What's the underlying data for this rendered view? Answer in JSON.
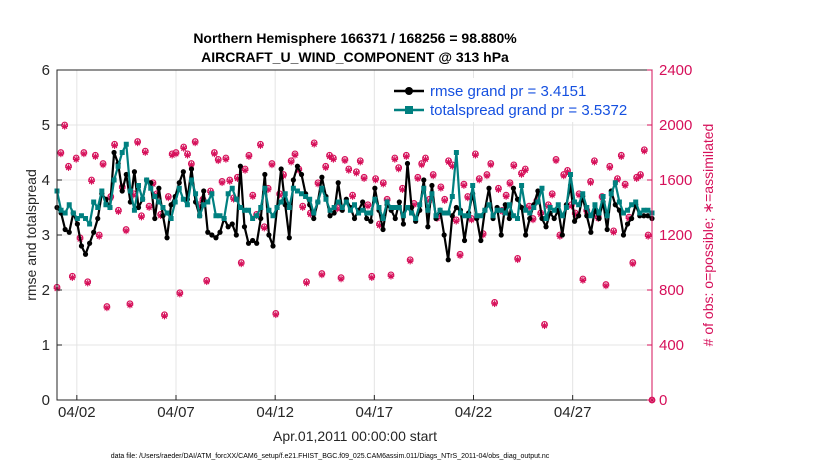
{
  "chart_data": {
    "type": "line",
    "title": "Northern Hemisphere 166371 / 168256 = 98.880%",
    "subtitle": "AIRCRAFT_U_WIND_COMPONENT @ 313 hPa",
    "xlabel": "Apr.01,2011 00:00:00 start",
    "ylabel_left": "rmse and totalspread",
    "ylabel_right": "# of obs: o=possible; ∗=assimilated",
    "footnote": "data file: /Users/raeder/DAI/ATM_forcXX/CAM6_setup/f.e21.FHIST_BGC.f09_025.CAM6assim.011/Diags_NTrS_2011-04/obs_diag_output.nc",
    "x_tick_labels": [
      "04/02",
      "04/07",
      "04/12",
      "04/17",
      "04/22",
      "04/27"
    ],
    "x_tick_days": [
      2,
      7,
      12,
      17,
      22,
      27
    ],
    "xlim_days": [
      1.0,
      31.0
    ],
    "y_left_ticks": [
      "0",
      "1",
      "2",
      "3",
      "4",
      "5",
      "6"
    ],
    "ylim_left": [
      0,
      6
    ],
    "y_right_ticks": [
      "0",
      "400",
      "800",
      "1200",
      "1600",
      "2000",
      "2400"
    ],
    "ylim_right": [
      0,
      2400
    ],
    "series": [
      {
        "name": "rmse grand pr = 3.4151",
        "color": "#000000",
        "marker": "circle",
        "axis": "left",
        "values": [
          3.5,
          3.4,
          3.1,
          3.05,
          3.4,
          3.2,
          2.8,
          2.65,
          2.85,
          3.05,
          3.3,
          3.75,
          3.65,
          3.5,
          4.5,
          4.3,
          3.8,
          4.1,
          3.6,
          4.15,
          3.5,
          3.65,
          4.0,
          3.95,
          3.3,
          3.85,
          3.35,
          2.95,
          3.55,
          3.7,
          3.95,
          4.15,
          3.65,
          4.2,
          3.6,
          3.35,
          3.8,
          3.05,
          3.0,
          2.95,
          3.05,
          3.3,
          3.15,
          3.2,
          3.0,
          4.25,
          3.15,
          2.85,
          2.9,
          2.85,
          3.3,
          4.1,
          3.0,
          2.8,
          3.5,
          4.2,
          3.55,
          2.95,
          4.0,
          4.25,
          4.1,
          3.75,
          3.55,
          3.3,
          3.6,
          4.05,
          3.7,
          3.35,
          3.4,
          3.95,
          3.45,
          3.65,
          3.5,
          3.3,
          3.45,
          3.6,
          3.3,
          3.25,
          3.85,
          3.45,
          3.1,
          3.55,
          3.45,
          3.3,
          3.6,
          3.2,
          4.3,
          3.5,
          3.25,
          3.45,
          4.0,
          3.15,
          3.9,
          3.3,
          3.45,
          3.0,
          2.55,
          3.35,
          3.5,
          3.45,
          2.9,
          3.4,
          3.75,
          3.3,
          2.9,
          3.45,
          3.85,
          3.3,
          3.5,
          3.0,
          3.55,
          3.3,
          3.85,
          3.65,
          3.5,
          3.0,
          3.3,
          3.55,
          3.8,
          3.3,
          3.15,
          3.4,
          3.3,
          3.45,
          3.0,
          3.55,
          3.9,
          3.25,
          3.35,
          3.7,
          3.35,
          3.05,
          3.45,
          3.3,
          3.6,
          3.1,
          3.8,
          3.55,
          3.45,
          3.0,
          3.2,
          3.3,
          3.55,
          3.35,
          3.35,
          3.35,
          3.3
        ]
      },
      {
        "name": "totalspread grand pr = 3.5372",
        "color": "#008080",
        "marker": "square",
        "axis": "left",
        "values": [
          3.8,
          3.45,
          3.4,
          3.55,
          3.4,
          3.3,
          3.35,
          3.3,
          3.2,
          3.6,
          3.5,
          3.8,
          3.55,
          3.5,
          4.0,
          4.25,
          4.5,
          4.65,
          3.8,
          3.45,
          3.9,
          3.65,
          4.0,
          3.85,
          3.7,
          3.6,
          3.5,
          3.4,
          3.3,
          3.6,
          3.85,
          3.65,
          3.55,
          4.0,
          3.75,
          3.35,
          3.55,
          3.6,
          3.75,
          3.35,
          3.35,
          3.3,
          3.75,
          3.85,
          3.65,
          3.5,
          3.45,
          3.45,
          3.3,
          3.35,
          3.5,
          3.85,
          3.45,
          3.35,
          3.5,
          3.6,
          3.75,
          3.5,
          3.85,
          3.8,
          3.75,
          3.7,
          3.65,
          3.4,
          3.6,
          3.85,
          3.65,
          3.45,
          3.5,
          3.6,
          3.5,
          3.6,
          3.45,
          3.55,
          3.4,
          3.45,
          3.4,
          3.4,
          3.65,
          3.5,
          3.3,
          3.6,
          3.5,
          3.5,
          3.5,
          3.35,
          3.5,
          3.4,
          3.3,
          3.55,
          3.85,
          3.45,
          3.75,
          3.35,
          3.45,
          3.4,
          3.4,
          3.7,
          4.5,
          3.4,
          3.35,
          3.35,
          3.9,
          3.35,
          3.35,
          3.45,
          3.55,
          3.35,
          3.45,
          3.45,
          3.4,
          3.55,
          3.35,
          3.3,
          3.9,
          3.45,
          3.4,
          3.5,
          3.6,
          3.85,
          3.3,
          3.5,
          3.45,
          3.55,
          3.35,
          3.5,
          4.1,
          3.6,
          3.55,
          3.75,
          3.5,
          3.35,
          3.55,
          3.4,
          3.7,
          3.35,
          3.75,
          3.95,
          3.6,
          3.4,
          3.45,
          3.55,
          3.6,
          3.4,
          3.45,
          3.45,
          3.4
        ]
      },
      {
        "name": "# of obs possible",
        "color": "#d6105a",
        "marker": "open-circle",
        "axis": "right",
        "values": [
          820,
          1800,
          2000,
          1700,
          900,
          1760,
          1180,
          1800,
          860,
          1600,
          1780,
          1200,
          1720,
          680,
          1480,
          1860,
          1380,
          1550,
          1240,
          700,
          1500,
          1880,
          1340,
          1810,
          1410,
          1580,
          1500,
          1350,
          620,
          1480,
          1790,
          1800,
          780,
          1840,
          1790,
          1720,
          1880,
          1420,
          1460,
          870,
          1520,
          1800,
          1750,
          1590,
          1760,
          1600,
          1470,
          1620,
          1000,
          1680,
          1780,
          1490,
          1350,
          1860,
          1260,
          1540,
          1720,
          630,
          1500,
          1640,
          1420,
          1740,
          1790,
          1680,
          1410,
          860,
          1360,
          1870,
          1580,
          920,
          1700,
          1780,
          1760,
          1400,
          890,
          1750,
          1680,
          1490,
          1660,
          1740,
          1620,
          1420,
          900,
          1610,
          1280,
          1580,
          1460,
          910,
          1760,
          1690,
          1540,
          1780,
          1020,
          1430,
          1620,
          1720,
          1760,
          1460,
          1640,
          1330,
          1550,
          1460,
          1740,
          1710,
          1310,
          1060,
          1570,
          1480,
          1320,
          1790,
          1610,
          1210,
          1640,
          1720,
          710,
          1540,
          1380,
          1490,
          1580,
          1710,
          1030,
          1650,
          1680,
          1410,
          1320,
          1450,
          1360,
          550,
          1420,
          1500,
          1750,
          1200,
          1640,
          1670,
          1420,
          1360,
          1500,
          880,
          1380,
          1590,
          1740,
          1330,
          1480,
          840,
          1700,
          1230,
          1610,
          1780,
          1570,
          1330,
          1000,
          1620,
          1640,
          1820,
          1200,
          0
        ]
      },
      {
        "name": "# of obs assimilated",
        "color": "#d6105a",
        "marker": "asterisk",
        "axis": "right",
        "values": [
          810,
          1790,
          1990,
          1690,
          890,
          1750,
          1170,
          1790,
          850,
          1590,
          1770,
          1190,
          1710,
          670,
          1470,
          1850,
          1370,
          1540,
          1230,
          690,
          1490,
          1870,
          1330,
          1800,
          1400,
          1570,
          1490,
          1340,
          610,
          1470,
          1780,
          1790,
          770,
          1830,
          1780,
          1710,
          1870,
          1410,
          1450,
          860,
          1510,
          1790,
          1740,
          1580,
          1750,
          1590,
          1460,
          1610,
          990,
          1670,
          1770,
          1480,
          1340,
          1850,
          1250,
          1530,
          1710,
          620,
          1490,
          1630,
          1410,
          1730,
          1780,
          1670,
          1400,
          850,
          1350,
          1860,
          1570,
          910,
          1690,
          1770,
          1750,
          1390,
          880,
          1740,
          1670,
          1480,
          1650,
          1730,
          1610,
          1410,
          890,
          1600,
          1270,
          1570,
          1450,
          900,
          1750,
          1680,
          1530,
          1770,
          1010,
          1420,
          1610,
          1710,
          1750,
          1450,
          1630,
          1320,
          1540,
          1450,
          1730,
          1700,
          1300,
          1050,
          1560,
          1470,
          1310,
          1780,
          1600,
          1200,
          1630,
          1710,
          700,
          1530,
          1370,
          1480,
          1570,
          1700,
          1020,
          1640,
          1670,
          1400,
          1310,
          1440,
          1350,
          540,
          1410,
          1490,
          1740,
          1190,
          1630,
          1660,
          1410,
          1350,
          1490,
          870,
          1370,
          1580,
          1730,
          1320,
          1470,
          830,
          1690,
          1220,
          1600,
          1770,
          1560,
          1320,
          990,
          1610,
          1630,
          1810,
          1190,
          0
        ]
      }
    ],
    "legend": {
      "position": "top-right",
      "entries": [
        "rmse grand pr = 3.4151",
        "totalspread grand pr = 3.5372"
      ],
      "text_color": "#1550e0"
    },
    "grid": true,
    "colors": {
      "rmse": "#000000",
      "totalspread": "#008080",
      "obs": "#d6105a",
      "legend_text": "#1550e0",
      "right_axis": "#d6105a"
    }
  }
}
